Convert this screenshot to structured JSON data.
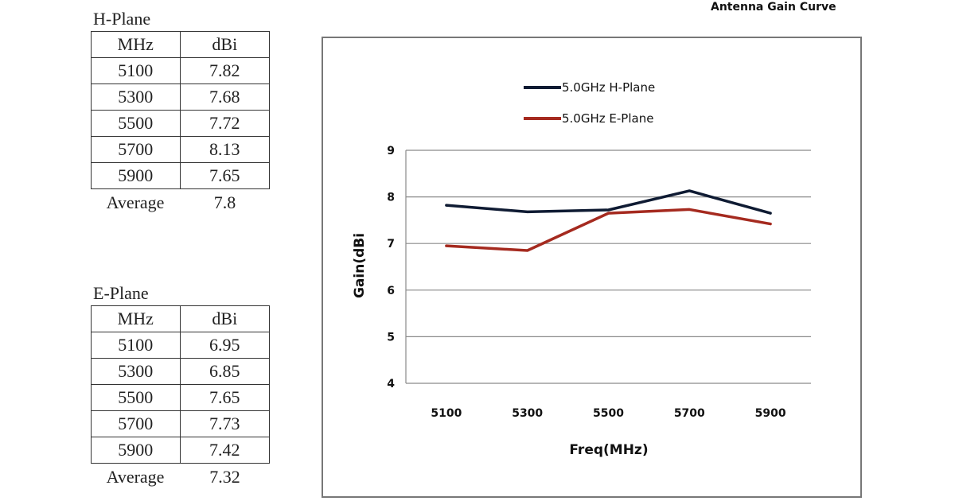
{
  "page_title": "Antenna Gain Curve",
  "h_plane_table": {
    "caption": "H-Plane",
    "headers": [
      "MHz",
      "dBi"
    ],
    "rows": [
      [
        "5100",
        "7.82"
      ],
      [
        "5300",
        "7.68"
      ],
      [
        "5500",
        "7.72"
      ],
      [
        "5700",
        "8.13"
      ],
      [
        "5900",
        "7.65"
      ]
    ],
    "average_label": "Average",
    "average_value": "7.8"
  },
  "e_plane_table": {
    "caption": "E-Plane",
    "headers": [
      "MHz",
      "dBi"
    ],
    "rows": [
      [
        "5100",
        "6.95"
      ],
      [
        "5300",
        "6.85"
      ],
      [
        "5500",
        "7.65"
      ],
      [
        "5700",
        "7.73"
      ],
      [
        "5900",
        "7.42"
      ]
    ],
    "average_label": "Average",
    "average_value": "7.32"
  },
  "chart_data": {
    "type": "line",
    "xlabel": "Freq(MHz)",
    "ylabel": "Gain(dBi",
    "categories": [
      "5100",
      "5300",
      "5500",
      "5700",
      "5900"
    ],
    "ylim": [
      4,
      9
    ],
    "yticks": [
      4,
      5,
      6,
      7,
      8,
      9
    ],
    "grid": true,
    "legend_position": "top-left",
    "series": [
      {
        "name": "5.0GHz H-Plane",
        "color": "#0f1b33",
        "values": [
          7.82,
          7.68,
          7.72,
          8.13,
          7.65
        ]
      },
      {
        "name": "5.0GHz E-Plane",
        "color": "#a52a1f",
        "values": [
          6.95,
          6.85,
          7.65,
          7.73,
          7.42
        ]
      }
    ]
  }
}
